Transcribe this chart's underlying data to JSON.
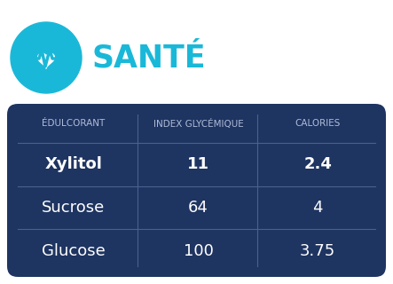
{
  "title": "SANTÉ",
  "title_color": "#1ab8d8",
  "bg_color": "#ffffff",
  "table_bg_color": "#1e3461",
  "row_divider_color": "#4a6090",
  "text_color_white": "#ffffff",
  "text_color_light": "#b0bcd8",
  "icon_circle_color": "#1ab8d8",
  "col_headers": [
    "ÉDULCORANT",
    "INDEX GLYCÉMIQUE",
    "CALORIES"
  ],
  "rows": [
    [
      "Xylitol",
      "11",
      "2.4"
    ],
    [
      "Sucrose",
      "64",
      "4"
    ],
    [
      "Glucose",
      "100",
      "3.75"
    ]
  ],
  "figsize": [
    4.43,
    3.2
  ],
  "dpi": 100
}
